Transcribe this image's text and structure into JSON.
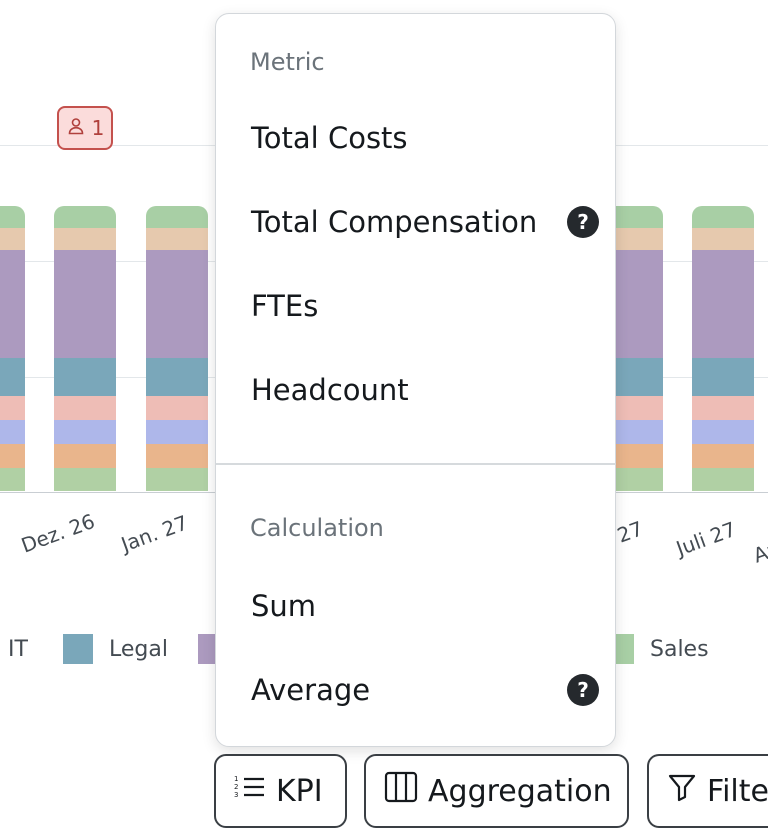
{
  "badge": {
    "icon": "user-icon",
    "count": "1"
  },
  "chart_data": {
    "type": "bar",
    "stacked": true,
    "categories": [
      "Dez. 26",
      "Jan. 27",
      "27",
      "Juli 27",
      "Au"
    ],
    "legend": [
      "IT",
      "Legal",
      "Sales"
    ],
    "colors": {
      "top": "#a8cfa5",
      "tan": "#e6c9ae",
      "purple": "#ac9abf",
      "legal_blue": "#7aa7ba",
      "pink": "#eebdb6",
      "periwinkle": "#aeb7ea",
      "orange": "#e9b58c",
      "sales_green": "#b0d0a4"
    }
  },
  "dropdown": {
    "metric": {
      "header": "Metric",
      "items": [
        {
          "label": "Total Costs",
          "help": false
        },
        {
          "label": "Total Compensation",
          "help": true
        },
        {
          "label": "FTEs",
          "help": false
        },
        {
          "label": "Headcount",
          "help": false
        }
      ]
    },
    "calculation": {
      "header": "Calculation",
      "items": [
        {
          "label": "Sum",
          "help": false
        },
        {
          "label": "Average",
          "help": true
        }
      ]
    },
    "help_glyph": "?"
  },
  "toolbar": {
    "kpi_label": "KPI",
    "aggregation_label": "Aggregation",
    "filter_label": "Filte"
  }
}
